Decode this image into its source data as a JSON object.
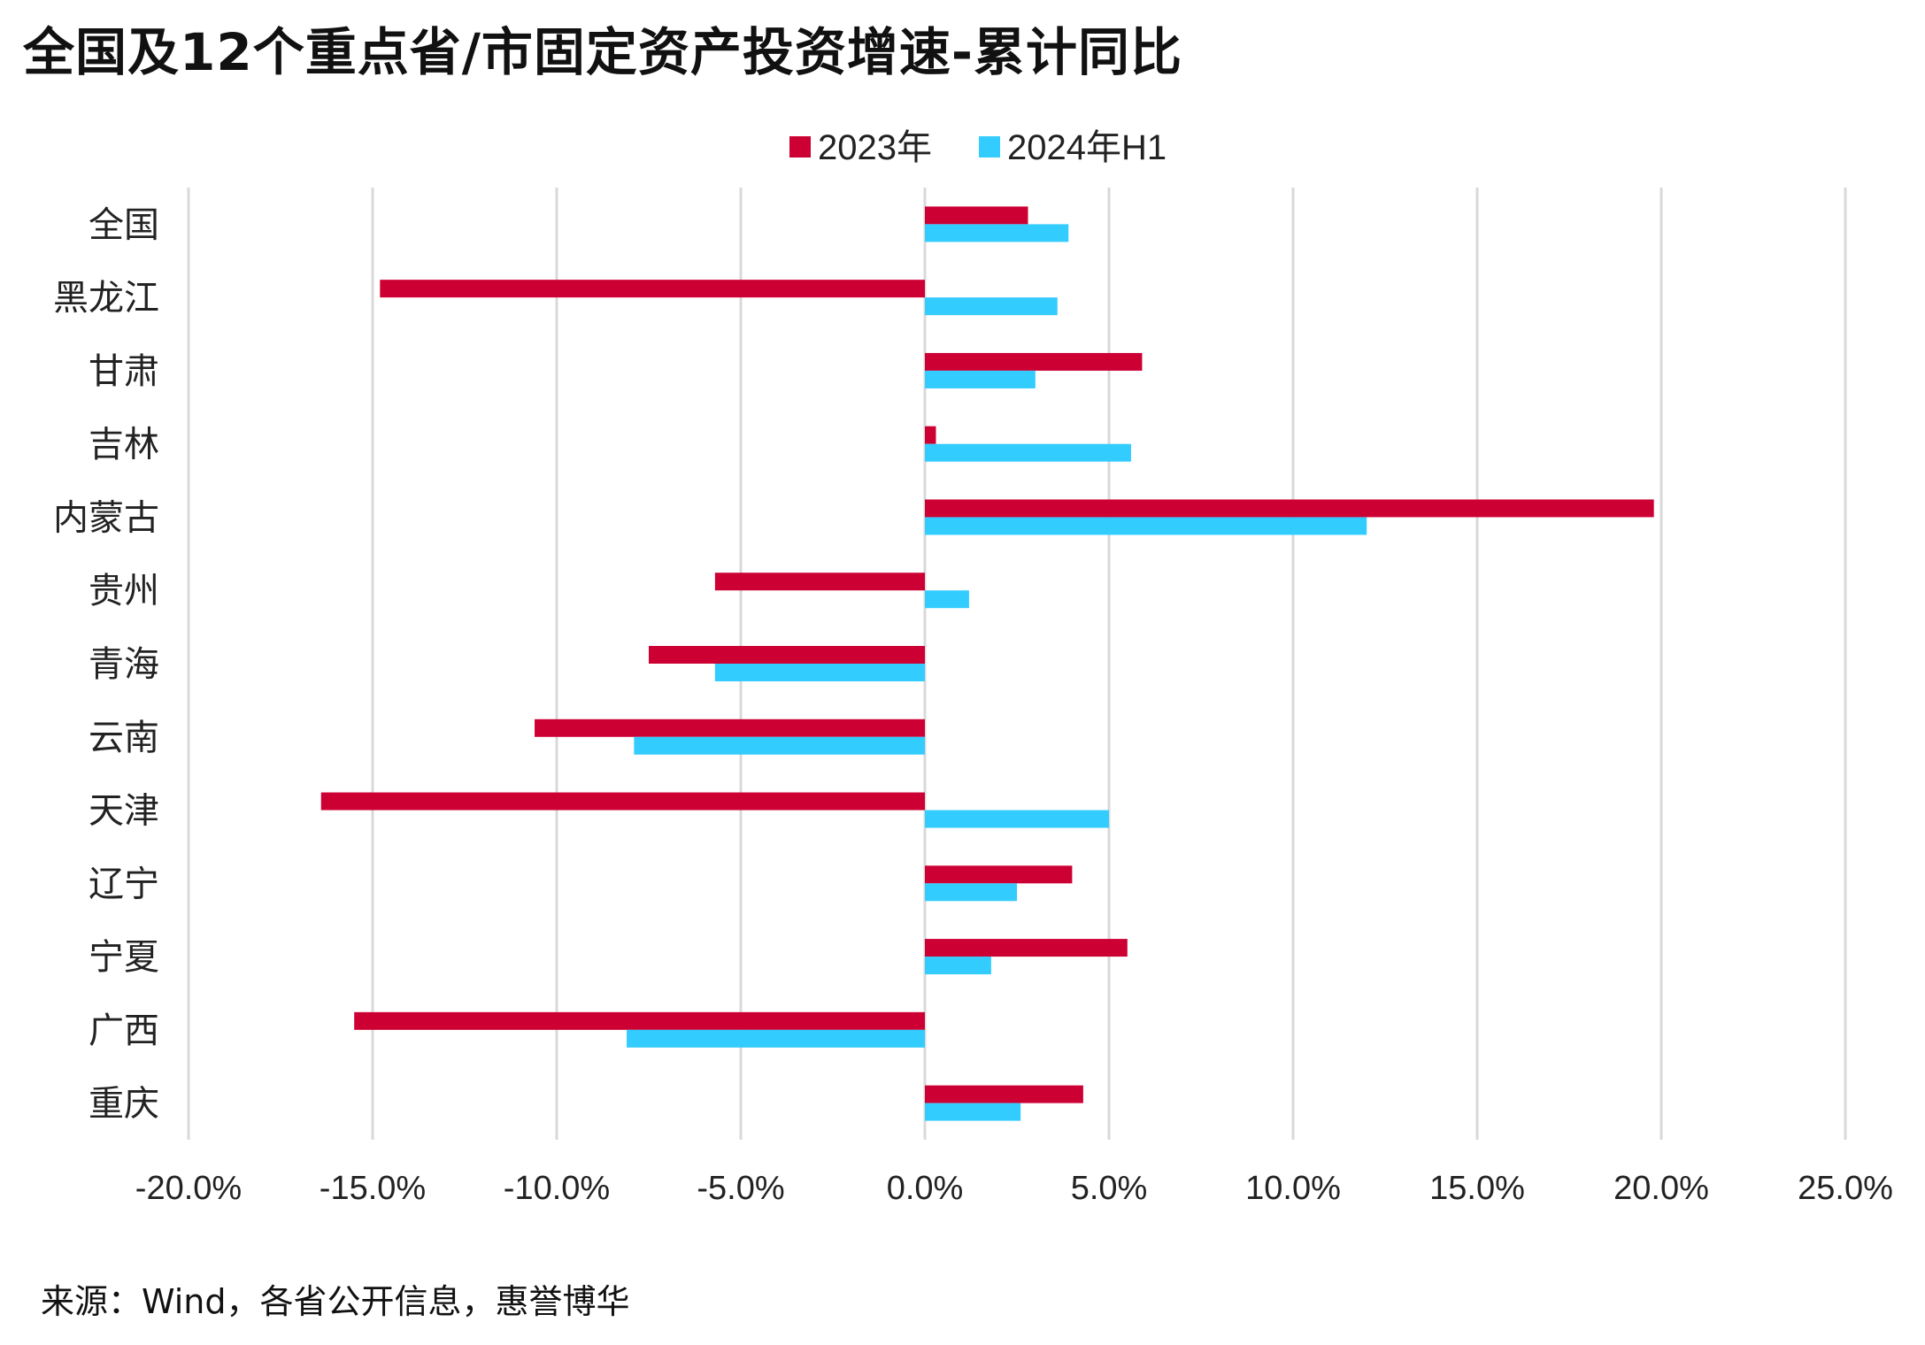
{
  "title": "全国及12个重点省/市固定资产投资增速-累计同比",
  "source": "来源：Wind，各省公开信息，惠誉博华",
  "colors": {
    "series_2023": "#cc0033",
    "series_2024H1": "#33ccff",
    "grid": "#d9d9d9"
  },
  "chart_data": {
    "type": "bar",
    "orientation": "horizontal",
    "categories": [
      "全国",
      "黑龙江",
      "甘肃",
      "吉林",
      "内蒙古",
      "贵州",
      "青海",
      "云南",
      "天津",
      "辽宁",
      "宁夏",
      "广西",
      "重庆"
    ],
    "series": [
      {
        "name": "2023年",
        "values": [
          2.8,
          -14.8,
          5.9,
          0.3,
          19.8,
          -5.7,
          -7.5,
          -10.6,
          -16.4,
          4.0,
          5.5,
          -15.5,
          4.3
        ]
      },
      {
        "name": "2024年H1",
        "values": [
          3.9,
          3.6,
          3.0,
          5.6,
          12.0,
          1.2,
          -5.7,
          -7.9,
          5.0,
          2.5,
          1.8,
          -8.1,
          2.6
        ]
      }
    ],
    "xlim": [
      -20,
      25
    ],
    "x_ticks": [
      "-20.0%",
      "-15.0%",
      "-10.0%",
      "-5.0%",
      "0.0%",
      "5.0%",
      "10.0%",
      "15.0%",
      "20.0%",
      "25.0%"
    ],
    "x_tick_values": [
      -20,
      -15,
      -10,
      -5,
      0,
      5,
      10,
      15,
      20,
      25
    ],
    "grid": true,
    "legend": "top-center"
  }
}
